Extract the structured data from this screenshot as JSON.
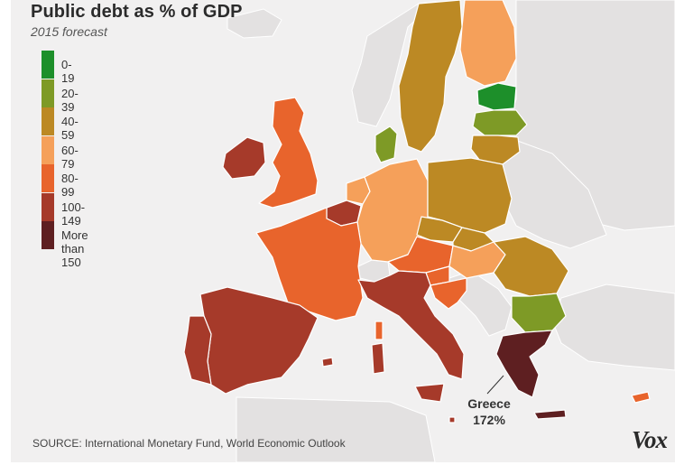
{
  "title": "Public debt as % of GDP",
  "subtitle": "2015 forecast",
  "legend": [
    {
      "label": "0-19",
      "color": "#1d8f2a"
    },
    {
      "label": "20-39",
      "color": "#7e9a26"
    },
    {
      "label": "40-59",
      "color": "#bc8924"
    },
    {
      "label": "60-79",
      "color": "#f5a05a"
    },
    {
      "label": "80-99",
      "color": "#e8642c"
    },
    {
      "label": "100-149",
      "color": "#a63a2a"
    },
    {
      "label": "More than 150",
      "color": "#5e1f21"
    }
  ],
  "highlight": {
    "name": "Greece",
    "value": "172%"
  },
  "source": "SOURCE: International Monetary Fund, World Economic Outlook",
  "brand": "Vox",
  "colors": {
    "background": "#f1f0f0",
    "non_eu": "#e3e1e1",
    "border": "#ffffff"
  }
}
